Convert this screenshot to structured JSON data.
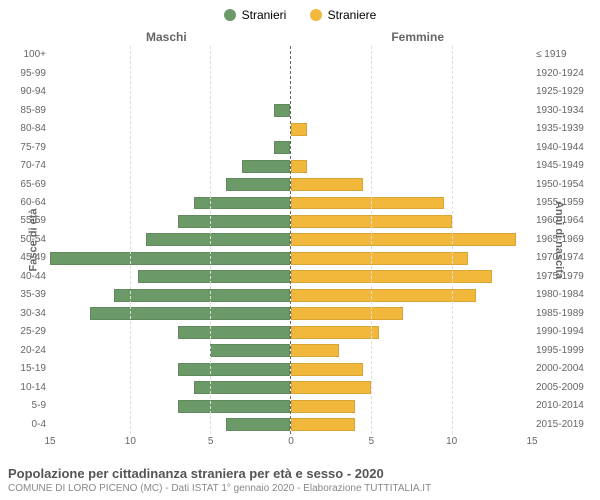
{
  "legend": {
    "male": {
      "label": "Stranieri",
      "color": "#6b9968"
    },
    "female": {
      "label": "Straniere",
      "color": "#f2b83b"
    }
  },
  "panel_title_left": "Maschi",
  "panel_title_right": "Femmine",
  "y_axis_left_label": "Fasce di età",
  "y_axis_right_label": "Anni di nascita",
  "x_axis": {
    "max": 15,
    "ticks": [
      15,
      10,
      5,
      0,
      5,
      10,
      15
    ]
  },
  "age_bands": [
    {
      "age": "100+",
      "birth": "≤ 1919",
      "m": 0,
      "f": 0
    },
    {
      "age": "95-99",
      "birth": "1920-1924",
      "m": 0,
      "f": 0
    },
    {
      "age": "90-94",
      "birth": "1925-1929",
      "m": 0,
      "f": 0
    },
    {
      "age": "85-89",
      "birth": "1930-1934",
      "m": 1,
      "f": 0
    },
    {
      "age": "80-84",
      "birth": "1935-1939",
      "m": 0,
      "f": 1
    },
    {
      "age": "75-79",
      "birth": "1940-1944",
      "m": 1,
      "f": 0
    },
    {
      "age": "70-74",
      "birth": "1945-1949",
      "m": 3,
      "f": 1
    },
    {
      "age": "65-69",
      "birth": "1950-1954",
      "m": 4,
      "f": 4.5
    },
    {
      "age": "60-64",
      "birth": "1955-1959",
      "m": 6,
      "f": 9.5
    },
    {
      "age": "55-59",
      "birth": "1960-1964",
      "m": 7,
      "f": 10
    },
    {
      "age": "50-54",
      "birth": "1965-1969",
      "m": 9,
      "f": 14
    },
    {
      "age": "45-49",
      "birth": "1970-1974",
      "m": 15,
      "f": 11
    },
    {
      "age": "40-44",
      "birth": "1975-1979",
      "m": 9.5,
      "f": 12.5
    },
    {
      "age": "35-39",
      "birth": "1980-1984",
      "m": 11,
      "f": 11.5
    },
    {
      "age": "30-34",
      "birth": "1985-1989",
      "m": 12.5,
      "f": 7
    },
    {
      "age": "25-29",
      "birth": "1990-1994",
      "m": 7,
      "f": 5.5
    },
    {
      "age": "20-24",
      "birth": "1995-1999",
      "m": 5,
      "f": 3
    },
    {
      "age": "15-19",
      "birth": "2000-2004",
      "m": 7,
      "f": 4.5
    },
    {
      "age": "10-14",
      "birth": "2005-2009",
      "m": 6,
      "f": 5
    },
    {
      "age": "5-9",
      "birth": "2010-2014",
      "m": 7,
      "f": 4
    },
    {
      "age": "0-4",
      "birth": "2015-2019",
      "m": 4,
      "f": 4
    }
  ],
  "footer": {
    "title": "Popolazione per cittadinanza straniera per età e sesso - 2020",
    "subtitle": "COMUNE DI LORO PICENO (MC) - Dati ISTAT 1° gennaio 2020 - Elaborazione TUTTITALIA.IT"
  },
  "style": {
    "background": "#ffffff",
    "grid_color": "#dddddd",
    "axis_color": "#666666",
    "bar_gap_ratio": 0.7,
    "font_family": "Arial, Helvetica, sans-serif"
  }
}
